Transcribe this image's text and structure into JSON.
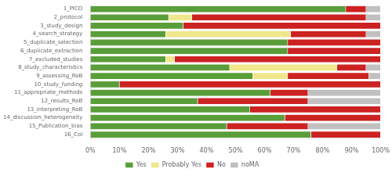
{
  "chart_data": {
    "type": "bar",
    "orientation": "horizontal",
    "stacked": true,
    "categories": [
      "1_PICO",
      "2_protocol",
      "3_study_design",
      "4_search_strategy",
      "5_duplicate_selection",
      "6_duplicate_extraction",
      "7_excluded_studies",
      "8_study_characteristics",
      "9_assessing_RoB",
      "10_study_funding",
      "11_appropriate_methods",
      "12_results_RoB",
      "13_interpreting_RoB",
      "14_discussion_heterogeneity",
      "15_Publication_bias",
      "16_CoI"
    ],
    "series": [
      {
        "name": "Yes",
        "color": "#5a9e3a",
        "values": [
          88,
          27,
          32,
          26,
          68,
          68,
          26,
          48,
          56,
          10,
          62,
          37,
          55,
          67,
          47,
          76
        ]
      },
      {
        "name": "Probably Yes",
        "color": "#f0e68c",
        "values": [
          0,
          8,
          0,
          43,
          0,
          0,
          3,
          37,
          12,
          0,
          0,
          0,
          0,
          0,
          0,
          0
        ]
      },
      {
        "name": "No",
        "color": "#cc2222",
        "values": [
          7,
          60,
          68,
          26,
          32,
          32,
          71,
          10,
          28,
          90,
          13,
          38,
          45,
          33,
          28,
          24
        ]
      },
      {
        "name": "noMA",
        "color": "#c0c0c0",
        "values": [
          5,
          5,
          0,
          5,
          0,
          0,
          0,
          5,
          4,
          0,
          25,
          25,
          0,
          0,
          25,
          0
        ]
      }
    ],
    "xlim": [
      0,
      100
    ],
    "xticks": [
      {
        "value": 0,
        "label": "0%"
      },
      {
        "value": 10,
        "label": "10%"
      },
      {
        "value": 20,
        "label": "20%"
      },
      {
        "value": 30,
        "label": "30%"
      },
      {
        "value": 40,
        "label": "40%"
      },
      {
        "value": 50,
        "label": "50%"
      },
      {
        "value": 60,
        "label": "60%"
      },
      {
        "value": 70,
        "label": "70%"
      },
      {
        "value": 80,
        "label": "80%"
      },
      {
        "value": 90,
        "label": "90%"
      },
      {
        "value": 100,
        "label": "100%"
      }
    ],
    "grid": false,
    "legend": "bottom"
  }
}
